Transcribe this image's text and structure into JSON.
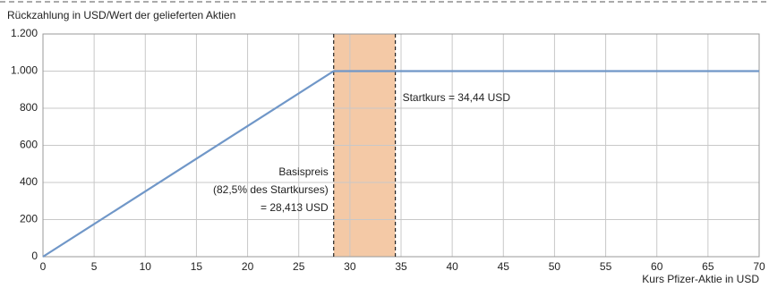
{
  "chart_data": {
    "type": "line",
    "y_axis_label": "Rückzahlung in USD/Wert der gelieferten Aktien",
    "x_axis_label": "Kurs Pfizer-Aktie in USD",
    "x": [
      0,
      28.413,
      70
    ],
    "series": [
      {
        "color": "#7097c8",
        "values": [
          0,
          1000,
          1000
        ]
      }
    ],
    "shaded_range": [
      28.413,
      34.44
    ],
    "shaded_color": "#f4c9a6",
    "annotations": [
      "Basispreis",
      "(82,5% des Startkurses)",
      "= 28,413 USD",
      "Startkurs = 34,44 USD"
    ],
    "xlim": [
      0,
      70
    ],
    "xticks": [
      0,
      5,
      10,
      15,
      20,
      25,
      30,
      35,
      40,
      45,
      50,
      55,
      60,
      65,
      70
    ],
    "ylim": [
      0,
      1200
    ],
    "yticks": [
      0,
      200,
      400,
      600,
      800,
      {
        "value": 1000,
        "label": "1.000"
      },
      {
        "value": 1200,
        "label": "1.200"
      }
    ],
    "grid": true
  }
}
